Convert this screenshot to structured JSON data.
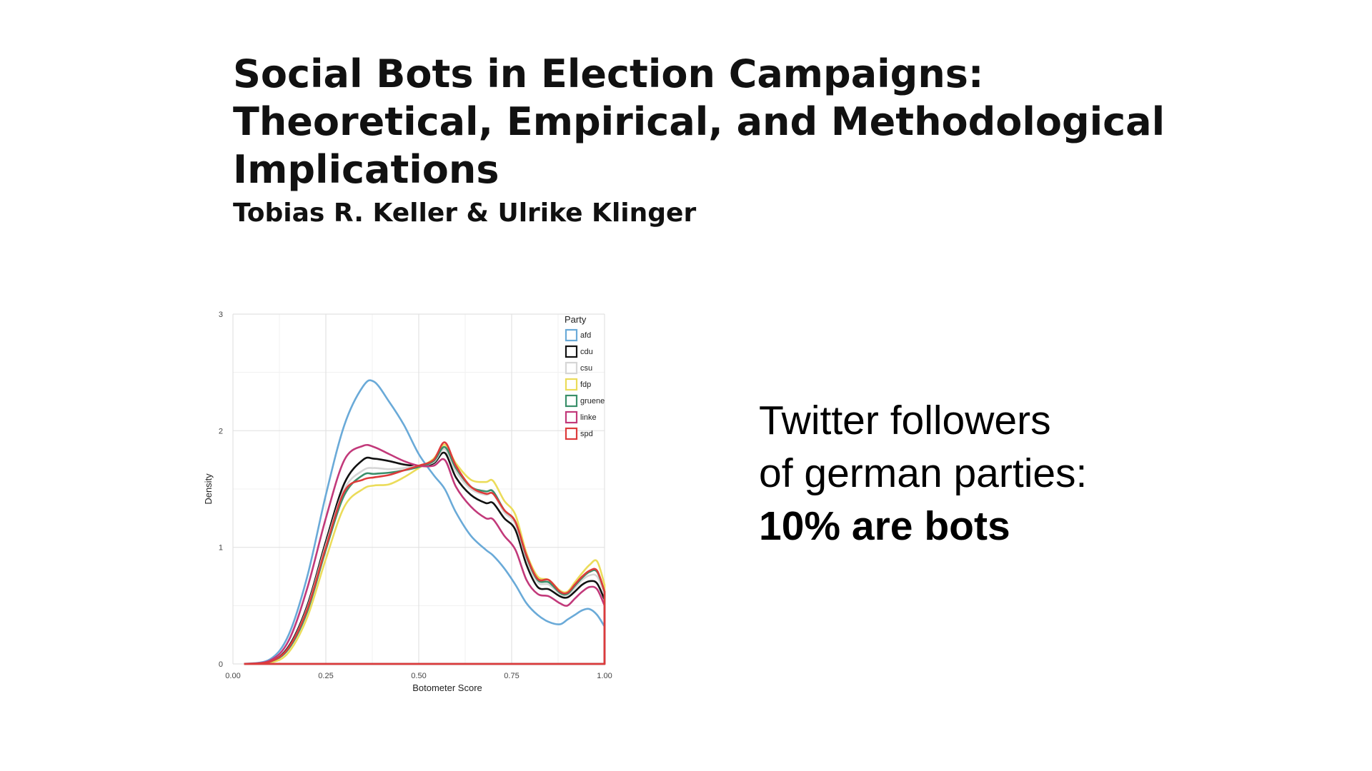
{
  "slide": {
    "title": "Social Bots in Election Campaigns: Theoretical, Empirical, and Methodological Implications",
    "authors": "Tobias R. Keller & Ulrike Klinger",
    "side_text": {
      "line1": "Twitter followers",
      "line2": "of german parties:",
      "line3": "10% are bots"
    }
  },
  "chart_data": {
    "type": "line",
    "xlabel": "Botometer Score",
    "ylabel": "Density",
    "xlim": [
      0,
      1
    ],
    "ylim": [
      0,
      3
    ],
    "x_ticks": [
      "0.00",
      "0.25",
      "0.50",
      "0.75",
      "1.00"
    ],
    "y_ticks": [
      "0",
      "1",
      "2",
      "3"
    ],
    "grid": true,
    "legend_title": "Party",
    "legend_position": "top-right",
    "x": [
      0.03,
      0.1,
      0.15,
      0.2,
      0.25,
      0.3,
      0.35,
      0.38,
      0.42,
      0.46,
      0.5,
      0.54,
      0.57,
      0.6,
      0.64,
      0.68,
      0.7,
      0.73,
      0.76,
      0.79,
      0.82,
      0.85,
      0.88,
      0.9,
      0.92,
      0.94,
      0.96,
      0.98,
      1.0
    ],
    "series": [
      {
        "name": "afd",
        "color": "#6aaad8",
        "values": [
          0.0,
          0.04,
          0.25,
          0.75,
          1.45,
          2.05,
          2.38,
          2.42,
          2.25,
          2.05,
          1.8,
          1.62,
          1.5,
          1.3,
          1.1,
          0.98,
          0.93,
          0.82,
          0.68,
          0.52,
          0.42,
          0.36,
          0.34,
          0.38,
          0.42,
          0.46,
          0.47,
          0.42,
          0.32
        ]
      },
      {
        "name": "cdu",
        "color": "#111111",
        "values": [
          0.0,
          0.02,
          0.15,
          0.5,
          1.05,
          1.55,
          1.75,
          1.76,
          1.74,
          1.71,
          1.7,
          1.72,
          1.81,
          1.6,
          1.45,
          1.38,
          1.38,
          1.25,
          1.15,
          0.85,
          0.66,
          0.64,
          0.58,
          0.57,
          0.62,
          0.68,
          0.71,
          0.69,
          0.55
        ]
      },
      {
        "name": "csu",
        "color": "#d6d6d6",
        "values": [
          0.0,
          0.02,
          0.14,
          0.48,
          1.02,
          1.5,
          1.66,
          1.68,
          1.67,
          1.68,
          1.7,
          1.73,
          1.84,
          1.65,
          1.5,
          1.45,
          1.46,
          1.3,
          1.2,
          0.9,
          0.7,
          0.68,
          0.6,
          0.59,
          0.65,
          0.72,
          0.76,
          0.75,
          0.6
        ]
      },
      {
        "name": "fdp",
        "color": "#ebdc5a",
        "values": [
          0.0,
          0.01,
          0.1,
          0.4,
          0.9,
          1.35,
          1.5,
          1.53,
          1.54,
          1.6,
          1.68,
          1.76,
          1.88,
          1.72,
          1.58,
          1.56,
          1.57,
          1.4,
          1.28,
          0.95,
          0.75,
          0.72,
          0.63,
          0.62,
          0.7,
          0.78,
          0.85,
          0.88,
          0.68
        ]
      },
      {
        "name": "gruene",
        "color": "#3a8f6a",
        "values": [
          0.0,
          0.02,
          0.13,
          0.45,
          0.98,
          1.45,
          1.62,
          1.63,
          1.64,
          1.66,
          1.69,
          1.74,
          1.86,
          1.68,
          1.52,
          1.48,
          1.48,
          1.32,
          1.22,
          0.92,
          0.72,
          0.7,
          0.61,
          0.6,
          0.67,
          0.74,
          0.79,
          0.79,
          0.62
        ]
      },
      {
        "name": "linke",
        "color": "#c2397a",
        "values": [
          0.0,
          0.03,
          0.2,
          0.65,
          1.25,
          1.75,
          1.87,
          1.86,
          1.8,
          1.74,
          1.7,
          1.7,
          1.75,
          1.52,
          1.35,
          1.25,
          1.24,
          1.1,
          0.98,
          0.72,
          0.6,
          0.58,
          0.52,
          0.5,
          0.56,
          0.62,
          0.66,
          0.64,
          0.5
        ]
      },
      {
        "name": "spd",
        "color": "#dd3b3b",
        "values": [
          0.0,
          0.02,
          0.14,
          0.47,
          1.0,
          1.48,
          1.58,
          1.6,
          1.62,
          1.66,
          1.7,
          1.75,
          1.9,
          1.7,
          1.52,
          1.46,
          1.46,
          1.32,
          1.22,
          0.93,
          0.73,
          0.72,
          0.62,
          0.61,
          0.68,
          0.75,
          0.8,
          0.8,
          0.62
        ]
      }
    ]
  }
}
